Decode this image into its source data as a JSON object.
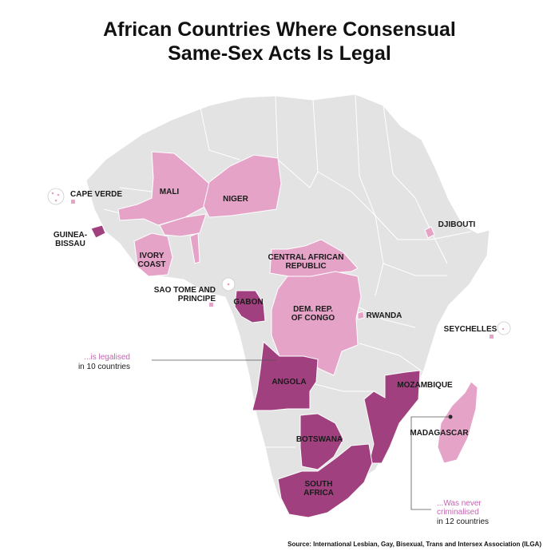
{
  "title": {
    "line1": "African Countries Where Consensual",
    "line2": "Same-Sex Acts Is Legal"
  },
  "legend": {
    "legalised": {
      "text": "...is legalised",
      "count": "in 10 countries",
      "color": "#a0407f"
    },
    "never": {
      "line1": "...Was never",
      "line2": "criminalised",
      "count": "in 12 countries",
      "color": "#e6a3c8"
    }
  },
  "colors": {
    "base": "#e3e3e3",
    "border": "#ffffff",
    "legalised": "#a0407f",
    "never_criminalised": "#e6a3c8"
  },
  "countries": {
    "mali": "MALI",
    "niger": "NIGER",
    "cape_verde": "CAPE VERDE",
    "guinea_bissau_1": "GUINEA-",
    "guinea_bissau_2": "BISSAU",
    "ivory_coast_1": "IVORY",
    "ivory_coast_2": "COAST",
    "djibouti": "DJIBOUTI",
    "car_1": "CENTRAL AFRICAN",
    "car_2": "REPUBLIC",
    "sao_tome_1": "SAO TOME AND",
    "sao_tome_2": "PRINCIPE",
    "gabon": "GABON",
    "drc_1": "DEM. REP.",
    "drc_2": "OF CONGO",
    "rwanda": "RWANDA",
    "seychelles": "SEYCHELLES",
    "angola": "ANGOLA",
    "mozambique": "MOZAMBIQUE",
    "madagascar": "MADAGASCAR",
    "botswana": "BOTSWANA",
    "south_africa_1": "SOUTH",
    "south_africa_2": "AFRICA"
  },
  "source": "Source: International Lesbian, Gay, Bisexual, Trans and Intersex Association (ILGA)"
}
